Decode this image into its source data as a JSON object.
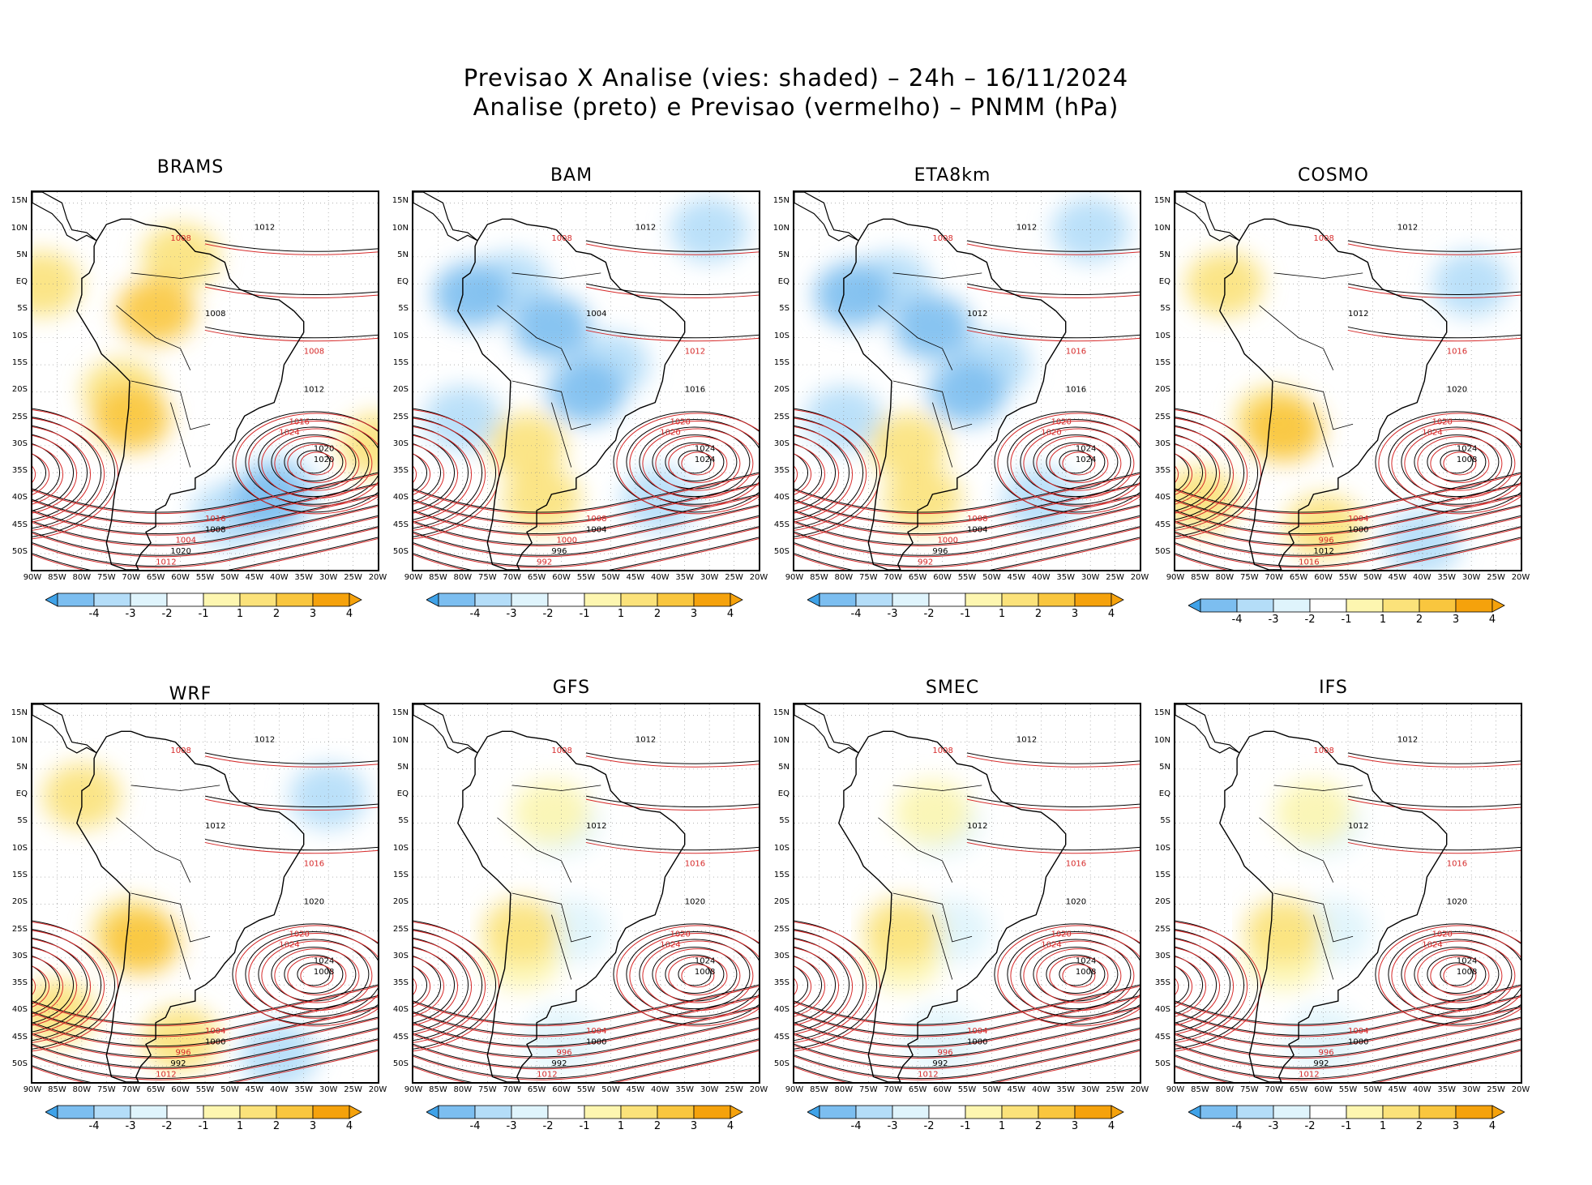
{
  "title_line1": "Previsao X Analise (vies: shaded) – 24h – 16/11/2024",
  "title_line2": "Analise (preto) e Previsao (vermelho) – PNMM (hPa)",
  "lat_labels": [
    "15N",
    "10N",
    "5N",
    "EQ",
    "5S",
    "10S",
    "15S",
    "20S",
    "25S",
    "30S",
    "35S",
    "40S",
    "45S",
    "50S"
  ],
  "lon_labels": [
    "90W",
    "85W",
    "80W",
    "75W",
    "70W",
    "65W",
    "60W",
    "55W",
    "50W",
    "45W",
    "40W",
    "35W",
    "30W",
    "25W",
    "20W"
  ],
  "colorbar": {
    "labels": [
      "-4",
      "-3",
      "-2",
      "-1",
      "1",
      "2",
      "3",
      "4"
    ],
    "colors": [
      "#3fa2e8",
      "#7cbef0",
      "#b4ddf8",
      "#dff4fc",
      "#ffffff",
      "#fdf6b0",
      "#fbe27a",
      "#f9c63e",
      "#f5a20c"
    ]
  },
  "colors": {
    "analysis_contour": "#000000",
    "forecast_contour": "#d62a2a",
    "coast": "#000000"
  },
  "panels": [
    {
      "name": "BRAMS",
      "bias": "warm",
      "labels": [
        "1012",
        "1008",
        "1008",
        "1008",
        "1012",
        "1016",
        "1020",
        "1024",
        "1020",
        "1016",
        "1008",
        "1004",
        "1020",
        "1012"
      ]
    },
    {
      "name": "BAM",
      "bias": "cold",
      "labels": [
        "1012",
        "1008",
        "1004",
        "1012",
        "1016",
        "1020",
        "1024",
        "1020",
        "1024",
        "1008",
        "1004",
        "1000",
        "996",
        "992"
      ]
    },
    {
      "name": "ETA8km",
      "bias": "cold",
      "labels": [
        "1012",
        "1008",
        "1012",
        "1016",
        "1016",
        "1020",
        "1024",
        "1020",
        "1024",
        "1008",
        "1004",
        "1000",
        "996",
        "992"
      ]
    },
    {
      "name": "COSMO",
      "bias": "mixed",
      "labels": [
        "1012",
        "1008",
        "1012",
        "1016",
        "1020",
        "1020",
        "1024",
        "1024",
        "1008",
        "1004",
        "1000",
        "996",
        "1012",
        "1016"
      ]
    },
    {
      "name": "WRF",
      "bias": "mixed",
      "labels": [
        "1012",
        "1008",
        "1012",
        "1016",
        "1020",
        "1020",
        "1024",
        "1024",
        "1008",
        "1004",
        "1000",
        "996",
        "992",
        "1012"
      ]
    },
    {
      "name": "GFS",
      "bias": "light",
      "labels": [
        "1012",
        "1008",
        "1012",
        "1016",
        "1020",
        "1020",
        "1024",
        "1024",
        "1008",
        "1004",
        "1000",
        "996",
        "992",
        "1012"
      ]
    },
    {
      "name": "SMEC",
      "bias": "light",
      "labels": [
        "1012",
        "1008",
        "1012",
        "1016",
        "1020",
        "1020",
        "1024",
        "1024",
        "1008",
        "1004",
        "1000",
        "996",
        "992",
        "1012"
      ]
    },
    {
      "name": "IFS",
      "bias": "light",
      "labels": [
        "1012",
        "1008",
        "1012",
        "1016",
        "1020",
        "1020",
        "1024",
        "1024",
        "1008",
        "1004",
        "1000",
        "996",
        "992",
        "1012"
      ]
    }
  ]
}
